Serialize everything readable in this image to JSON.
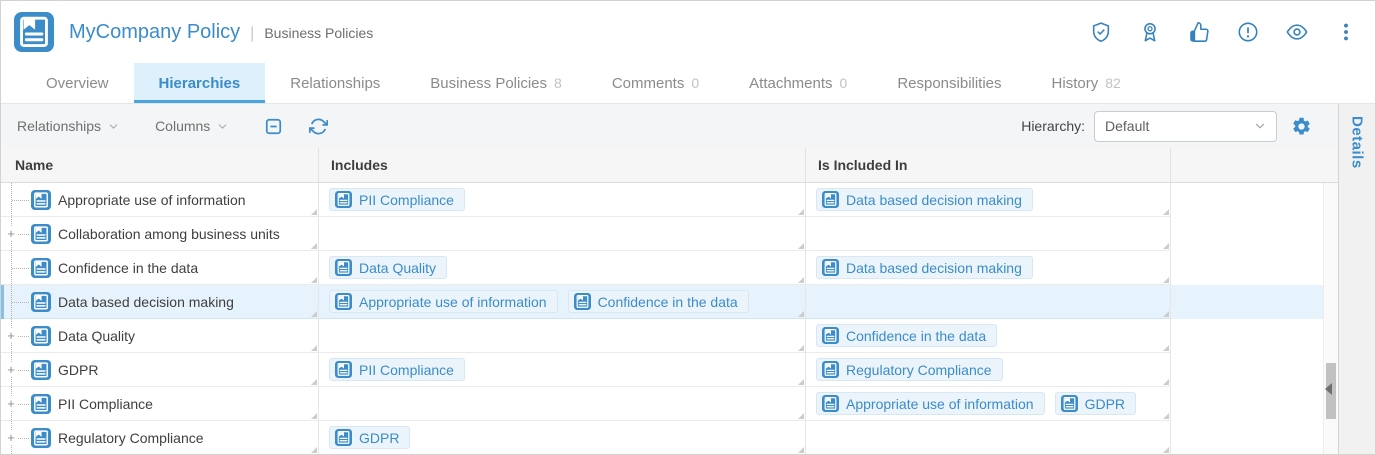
{
  "header": {
    "title": "MyCompany Policy",
    "separator": "|",
    "subtitle": "Business Policies",
    "action_icons": [
      "shield-check-icon",
      "award-icon",
      "thumbs-up-icon",
      "alert-circle-icon",
      "eye-icon",
      "kebab-menu-icon"
    ]
  },
  "tabs": [
    {
      "label": "Overview",
      "count": "",
      "active": false
    },
    {
      "label": "Hierarchies",
      "count": "",
      "active": true
    },
    {
      "label": "Relationships",
      "count": "",
      "active": false
    },
    {
      "label": "Business Policies",
      "count": "8",
      "active": false
    },
    {
      "label": "Comments",
      "count": "0",
      "active": false
    },
    {
      "label": "Attachments",
      "count": "0",
      "active": false
    },
    {
      "label": "Responsibilities",
      "count": "",
      "active": false
    },
    {
      "label": "History",
      "count": "82",
      "active": false
    }
  ],
  "toolbar": {
    "relationships_label": "Relationships",
    "columns_label": "Columns",
    "icons": [
      "collapse-all-icon",
      "refresh-icon"
    ],
    "hierarchy_label": "Hierarchy:",
    "hierarchy_value": "Default",
    "settings_icon": "gear-icon"
  },
  "table": {
    "columns": [
      "Name",
      "Includes",
      "Is Included In"
    ],
    "rows": [
      {
        "name": "Appropriate use of information",
        "expandable": false,
        "selected": false,
        "includes": [
          "PII Compliance"
        ],
        "included_in": [
          "Data based decision making"
        ]
      },
      {
        "name": "Collaboration among business units",
        "expandable": true,
        "selected": false,
        "includes": [],
        "included_in": []
      },
      {
        "name": "Confidence in the data",
        "expandable": false,
        "selected": false,
        "includes": [
          "Data Quality"
        ],
        "included_in": [
          "Data based decision making"
        ]
      },
      {
        "name": "Data based decision making",
        "expandable": false,
        "selected": true,
        "includes": [
          "Appropriate use of information",
          "Confidence in the data"
        ],
        "included_in": []
      },
      {
        "name": "Data Quality",
        "expandable": true,
        "selected": false,
        "includes": [],
        "included_in": [
          "Confidence in the data"
        ]
      },
      {
        "name": "GDPR",
        "expandable": true,
        "selected": false,
        "includes": [
          "PII Compliance"
        ],
        "included_in": [
          "Regulatory Compliance"
        ]
      },
      {
        "name": "PII Compliance",
        "expandable": true,
        "selected": false,
        "includes": [],
        "included_in": [
          "Appropriate use of information",
          "GDPR"
        ]
      },
      {
        "name": "Regulatory Compliance",
        "expandable": true,
        "selected": false,
        "includes": [
          "GDPR"
        ],
        "included_in": []
      }
    ]
  },
  "details_panel": {
    "label": "Details"
  },
  "colors": {
    "accent_blue": "#3a8cca",
    "icon_blue": "#3481bf",
    "tab_active_bg": "#def0fb",
    "tab_underline": "#4aa4de",
    "selected_row_bg": "#e7f3fc",
    "chip_bg": "#ecf4fb",
    "chip_border": "#d8e7f4",
    "toolbar_bg": "#f4f5f6",
    "grid_header_bg": "#f6f6f6"
  }
}
